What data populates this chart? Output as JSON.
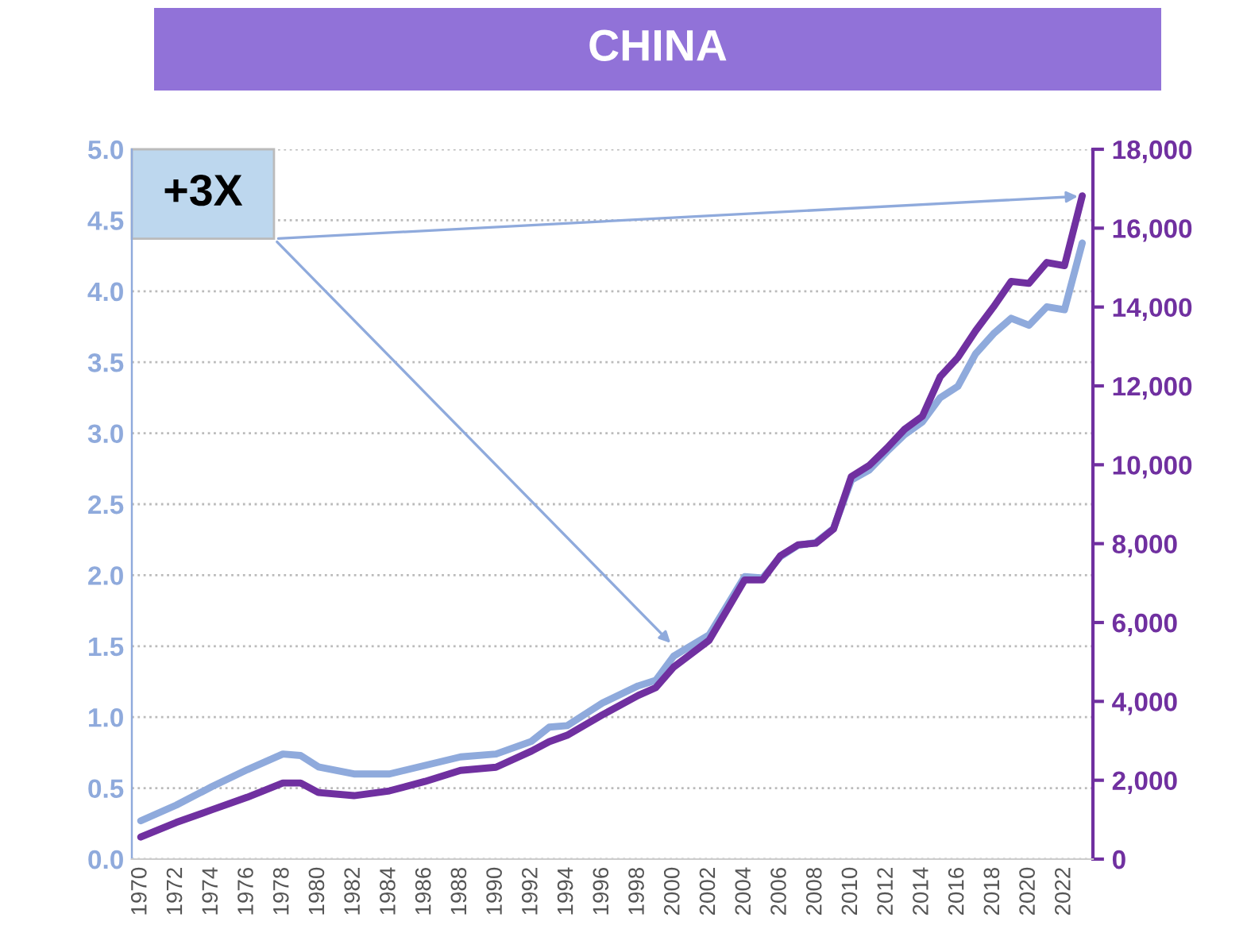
{
  "chart_data": {
    "type": "line",
    "title": "CHINA",
    "x": [
      1970,
      1972,
      1974,
      1976,
      1978,
      1979,
      1980,
      1982,
      1984,
      1986,
      1988,
      1990,
      1992,
      1993,
      1994,
      1996,
      1998,
      1999,
      2000,
      2002,
      2004,
      2005,
      2006,
      2007,
      2008,
      2009,
      2010,
      2011,
      2012,
      2013,
      2014,
      2015,
      2016,
      2017,
      2018,
      2019,
      2020,
      2021,
      2022,
      2023
    ],
    "series": [
      {
        "color": "#8faadc",
        "axis": "y",
        "values": [
          0.27,
          0.38,
          0.51,
          0.63,
          0.74,
          0.73,
          0.65,
          0.6,
          0.6,
          0.66,
          0.72,
          0.74,
          0.83,
          0.93,
          0.94,
          1.1,
          1.22,
          1.26,
          1.43,
          1.58,
          1.99,
          1.98,
          2.13,
          2.21,
          2.23,
          2.33,
          2.67,
          2.74,
          2.87,
          2.99,
          3.08,
          3.25,
          3.33,
          3.56,
          3.7,
          3.81,
          3.76,
          3.89,
          3.87,
          4.34
        ]
      },
      {
        "color": "#7030a0",
        "axis": "y2",
        "values": [
          560,
          930,
          1250,
          1570,
          1930,
          1930,
          1690,
          1610,
          1730,
          1970,
          2250,
          2330,
          2740,
          2980,
          3140,
          3660,
          4150,
          4350,
          4870,
          5550,
          7080,
          7080,
          7690,
          7970,
          8010,
          8370,
          9700,
          9980,
          10420,
          10900,
          11230,
          12230,
          12720,
          13400,
          14000,
          14650,
          14600,
          15130,
          15050,
          16820
        ]
      }
    ],
    "xlim": [
      1969.5,
      2023.6
    ],
    "xticks": [
      1970,
      1972,
      1974,
      1976,
      1978,
      1980,
      1982,
      1984,
      1986,
      1988,
      1990,
      1992,
      1994,
      1996,
      1998,
      2000,
      2002,
      2004,
      2006,
      2008,
      2010,
      2012,
      2014,
      2016,
      2018,
      2020,
      2022
    ],
    "ylim": [
      0,
      5
    ],
    "yticks": [
      {
        "value": 0,
        "label": "0.0"
      },
      {
        "value": 0.5,
        "label": "0.5"
      },
      {
        "value": 1,
        "label": "1.0"
      },
      {
        "value": 1.5,
        "label": "1.5"
      },
      {
        "value": 2,
        "label": "2.0"
      },
      {
        "value": 2.5,
        "label": "2.5"
      },
      {
        "value": 3,
        "label": "3.0"
      },
      {
        "value": 3.5,
        "label": "3.5"
      },
      {
        "value": 4,
        "label": "4.0"
      },
      {
        "value": 4.5,
        "label": "4.5"
      },
      {
        "value": 5,
        "label": "5.0"
      }
    ],
    "y2lim": [
      0,
      18000
    ],
    "y2ticks": [
      {
        "value": 0,
        "label": "0"
      },
      {
        "value": 2000,
        "label": "2,000"
      },
      {
        "value": 4000,
        "label": "4,000"
      },
      {
        "value": 6000,
        "label": "6,000"
      },
      {
        "value": 8000,
        "label": "8,000"
      },
      {
        "value": 10000,
        "label": "10,000"
      },
      {
        "value": 12000,
        "label": "12,000"
      },
      {
        "value": 14000,
        "label": "14,000"
      },
      {
        "value": 16000,
        "label": "16,000"
      },
      {
        "value": 18000,
        "label": "18,000"
      }
    ],
    "grid": "y",
    "legend": false,
    "annotations": [
      "+3X"
    ]
  }
}
